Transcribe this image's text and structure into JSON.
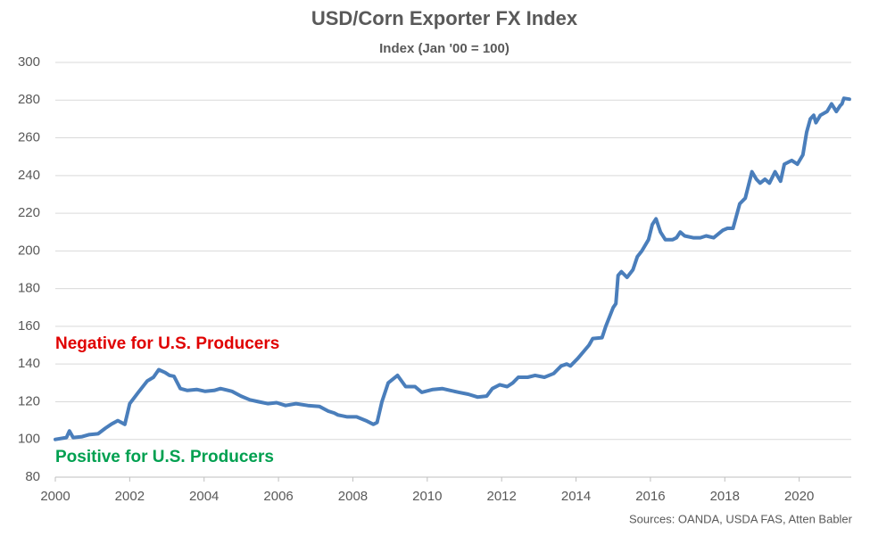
{
  "chart_data": {
    "type": "line",
    "title": "USD/Corn Exporter FX Index",
    "subtitle": "Index (Jan '00 = 100)",
    "annotations": [
      "Negative for U.S. Producers",
      "Positive for U.S. Producers"
    ],
    "source": "Sources: OANDA, USDA FAS, Atten Babler",
    "xlim": [
      2000,
      2021.4
    ],
    "xticks": [
      2000,
      2002,
      2004,
      2006,
      2008,
      2010,
      2012,
      2014,
      2016,
      2018,
      2020
    ],
    "ylim": [
      80,
      300
    ],
    "yticks": [
      80,
      100,
      120,
      140,
      160,
      180,
      200,
      220,
      240,
      260,
      280,
      300
    ],
    "grid": true,
    "series": [
      {
        "name": "USD/Corn Exporter FX Index",
        "color": "#4a7ebb",
        "x": [
          2000.0,
          2000.3,
          2000.38,
          2000.48,
          2000.72,
          2000.9,
          2001.15,
          2001.35,
          2001.5,
          2001.68,
          2001.87,
          2002.0,
          2002.23,
          2002.47,
          2002.64,
          2002.78,
          2002.95,
          2003.07,
          2003.19,
          2003.36,
          2003.55,
          2003.8,
          2004.03,
          2004.27,
          2004.44,
          2004.75,
          2004.99,
          2005.23,
          2005.47,
          2005.71,
          2005.95,
          2006.19,
          2006.47,
          2006.79,
          2007.1,
          2007.34,
          2007.5,
          2007.6,
          2007.85,
          2008.1,
          2008.35,
          2008.55,
          2008.65,
          2008.78,
          2008.95,
          2009.2,
          2009.42,
          2009.67,
          2009.85,
          2010.15,
          2010.4,
          2010.62,
          2010.85,
          2011.1,
          2011.35,
          2011.6,
          2011.75,
          2011.95,
          2012.15,
          2012.3,
          2012.45,
          2012.7,
          2012.9,
          2013.15,
          2013.4,
          2013.6,
          2013.75,
          2013.85,
          2014.05,
          2014.35,
          2014.45,
          2014.7,
          2014.8,
          2015.0,
          2015.07,
          2015.13,
          2015.22,
          2015.37,
          2015.53,
          2015.65,
          2015.77,
          2015.95,
          2016.05,
          2016.15,
          2016.27,
          2016.4,
          2016.6,
          2016.7,
          2016.8,
          2016.92,
          2017.15,
          2017.34,
          2017.5,
          2017.7,
          2017.95,
          2018.07,
          2018.22,
          2018.4,
          2018.55,
          2018.73,
          2018.85,
          2018.95,
          2019.08,
          2019.2,
          2019.35,
          2019.5,
          2019.6,
          2019.8,
          2019.95,
          2020.1,
          2020.2,
          2020.3,
          2020.39,
          2020.45,
          2020.57,
          2020.75,
          2020.87,
          2021.0,
          2021.1,
          2021.15,
          2021.2,
          2021.35
        ],
        "values": [
          100,
          101,
          104.5,
          101,
          101.5,
          102.5,
          103,
          106,
          108,
          110,
          108,
          119,
          125,
          131,
          133,
          137,
          135.5,
          134,
          133.5,
          127,
          126,
          126.5,
          125.5,
          126,
          127,
          125.5,
          123,
          121,
          120,
          119,
          119.5,
          118,
          119,
          118,
          117.5,
          115,
          114,
          113,
          112,
          112,
          110,
          108,
          109,
          120,
          130,
          134,
          128,
          128,
          125,
          126.5,
          127,
          126,
          125,
          124,
          122.5,
          123,
          127,
          129,
          128,
          130,
          133,
          133,
          134,
          133,
          135,
          139,
          140,
          139,
          143,
          150,
          153.5,
          154,
          160,
          170,
          172,
          187,
          189,
          186,
          190,
          197,
          200,
          206,
          214,
          217,
          210,
          206,
          206,
          207,
          210,
          208,
          207,
          207,
          208,
          207,
          211,
          212,
          212,
          225,
          228,
          242,
          238,
          236,
          238,
          236,
          242,
          237,
          246,
          248,
          246,
          251,
          263,
          270,
          272,
          268,
          272,
          274,
          278,
          274,
          277,
          278,
          281,
          280.5
        ]
      }
    ]
  }
}
